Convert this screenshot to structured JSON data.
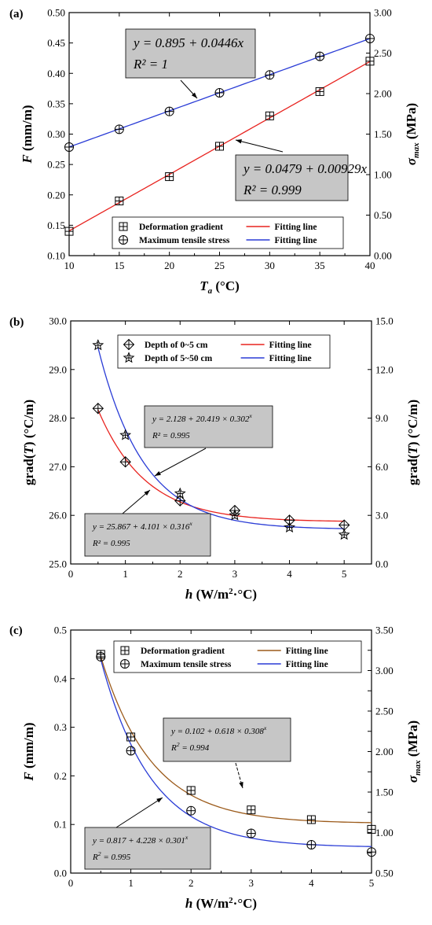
{
  "figure": {
    "panels": [
      "(a)",
      "(b)",
      "(c)"
    ]
  },
  "chart_data": [
    {
      "panel_label": "(a)",
      "type": "line",
      "xlabel": "T_a (°C)",
      "xlabel_main": "T",
      "xlabel_sub": "a",
      "xlabel_unit": " (°C)",
      "ylabel": "F (mm/m)",
      "ylabel_italic": "F",
      "ylabel_unit": " (mm/m)",
      "y2label": "σ_max (MPa)",
      "y2label_main": "σ",
      "y2label_sub": "max",
      "y2label_unit": " (MPa)",
      "xlim": [
        10,
        40
      ],
      "ylim": [
        0.1,
        0.5
      ],
      "y2lim": [
        0.0,
        3.0
      ],
      "xticks": [
        10,
        15,
        20,
        25,
        30,
        35,
        40
      ],
      "xtick_labels": [
        "10",
        "15",
        "20",
        "25",
        "30",
        "35",
        "40"
      ],
      "yticks": [
        0.1,
        0.15,
        0.2,
        0.25,
        0.3,
        0.35,
        0.4,
        0.45,
        0.5
      ],
      "ytick_labels": [
        "0.10",
        "0.15",
        "0.20",
        "0.25",
        "0.30",
        "0.35",
        "0.40",
        "0.45",
        "0.50"
      ],
      "y2ticks": [
        0.0,
        0.5,
        1.0,
        1.5,
        2.0,
        2.5,
        3.0
      ],
      "y2tick_labels": [
        "0.00",
        "0.50",
        "1.00",
        "1.50",
        "2.00",
        "2.50",
        "3.00"
      ],
      "grid": false,
      "series": [
        {
          "name": "Deformation gradient",
          "marker": "boxplus",
          "axis": "left",
          "x": [
            10,
            15,
            20,
            25,
            30,
            35,
            40
          ],
          "y": [
            0.14,
            0.19,
            0.23,
            0.28,
            0.33,
            0.37,
            0.42
          ]
        },
        {
          "name": "Maximum tensile stress",
          "marker": "oplus",
          "axis": "right",
          "x": [
            10,
            15,
            20,
            25,
            30,
            35,
            40
          ],
          "y": [
            1.34,
            1.56,
            1.78,
            2.01,
            2.23,
            2.46,
            2.68
          ]
        }
      ],
      "fits": [
        {
          "name": "Fitting line",
          "color": "#e8231f",
          "axis": "left",
          "model": "linear",
          "a": 0.0479,
          "b": 0.00929,
          "xrange": [
            10,
            40
          ]
        },
        {
          "name": "Fitting line",
          "color": "#2a3cd6",
          "axis": "right",
          "model": "linear",
          "a": 0.895,
          "b": 0.0446,
          "xrange": [
            10,
            40
          ]
        }
      ],
      "legend": [
        {
          "label": "Deformation gradient",
          "marker": "boxplus",
          "line_label": "Fitting line",
          "color": "#e8231f"
        },
        {
          "label": "Maximum tensile stress",
          "marker": "oplus",
          "line_label": "Fitting line",
          "color": "#2a3cd6"
        }
      ],
      "annotations": [
        {
          "line1": "y = 0.895 + 0.0446x",
          "line2": "R² = 1"
        },
        {
          "line1": "y = 0.0479 + 0.00929x",
          "line2": "R² = 0.999"
        }
      ]
    },
    {
      "panel_label": "(b)",
      "type": "line",
      "xlabel": "h (W/m²·°C)",
      "xlabel_main": "h",
      "xlabel_unit": " (W/m",
      "xlabel_sup": "2",
      "xlabel_unit2": "·°C)",
      "ylabel": "grad(T) (°C/m)",
      "y2label": "grad(T) (°C/m)",
      "grad_a": "grad(",
      "grad_t": "T",
      "grad_b": ") (°C/m)",
      "xlim": [
        0,
        5.5
      ],
      "ylim": [
        25.0,
        30.0
      ],
      "y2lim": [
        0.0,
        15.0
      ],
      "xticks": [
        0,
        1,
        2,
        3,
        4,
        5
      ],
      "xtick_labels": [
        "0",
        "1",
        "2",
        "3",
        "4",
        "5"
      ],
      "yticks": [
        25.0,
        26.0,
        27.0,
        28.0,
        29.0,
        30.0
      ],
      "ytick_labels": [
        "25.0",
        "26.0",
        "27.0",
        "28.0",
        "29.0",
        "30.0"
      ],
      "y2ticks": [
        0.0,
        3.0,
        6.0,
        9.0,
        12.0,
        15.0
      ],
      "y2tick_labels": [
        "0.0",
        "3.0",
        "6.0",
        "9.0",
        "12.0",
        "15.0"
      ],
      "grid": false,
      "series": [
        {
          "name": "Depth of 0~5 cm",
          "marker": "diamondplus",
          "axis": "left",
          "x": [
            0.5,
            1,
            2,
            3,
            4,
            5
          ],
          "y": [
            28.2,
            27.1,
            26.3,
            26.1,
            25.9,
            25.8
          ]
        },
        {
          "name": "Depth of 5~50 cm",
          "marker": "star",
          "axis": "left",
          "x": [
            0.5,
            1,
            2,
            3,
            4,
            5
          ],
          "y": [
            29.5,
            27.65,
            26.45,
            26.0,
            25.75,
            25.6
          ]
        }
      ],
      "fits": [
        {
          "name": "Fitting line",
          "color": "#e8231f",
          "axis": "left",
          "model": "exp",
          "a": 25.867,
          "b": 4.101,
          "c": 0.316,
          "xrange": [
            0.5,
            5
          ]
        },
        {
          "name": "Fitting line",
          "color": "#2a3cd6",
          "axis": "right",
          "model": "exp",
          "a": 2.128,
          "b": 20.419,
          "c": 0.302,
          "xrange": [
            0.5,
            5
          ]
        }
      ],
      "legend": [
        {
          "label": "Depth of 0~5 cm",
          "marker": "diamondplus",
          "line_label": "Fitting line",
          "color": "#e8231f"
        },
        {
          "label": "Depth of 5~50 cm",
          "marker": "star",
          "line_label": "Fitting line",
          "color": "#2a3cd6"
        }
      ],
      "annotations": [
        {
          "line1": "y = 2.128 + 20.419 × 0.302",
          "sup": "x",
          "line2": "R² = 0.995"
        },
        {
          "line1": "y = 25.867 + 4.101 × 0.316",
          "sup": "x",
          "line2": "R² = 0.995"
        }
      ]
    },
    {
      "panel_label": "(c)",
      "type": "line",
      "xlabel": "h (W/m²·°C)",
      "xlabel_main": "h",
      "xlabel_unit": " (W/m",
      "xlabel_sup": "2",
      "xlabel_unit2": "·°C)",
      "ylabel": "F (mm/m)",
      "ylabel_italic": "F",
      "ylabel_unit": " (mm/m)",
      "y2label": "σ_max (MPa)",
      "y2label_main": "σ",
      "y2label_sub": "max",
      "y2label_unit": " (MPa)",
      "xlim": [
        0,
        5
      ],
      "ylim": [
        0.0,
        0.5
      ],
      "y2lim": [
        0.5,
        3.5
      ],
      "xticks": [
        0,
        1,
        2,
        3,
        4,
        5
      ],
      "xtick_labels": [
        "0",
        "1",
        "2",
        "3",
        "4",
        "5"
      ],
      "yticks": [
        0.0,
        0.1,
        0.2,
        0.3,
        0.4,
        0.5
      ],
      "ytick_labels": [
        "0.0",
        "0.1",
        "0.2",
        "0.3",
        "0.4",
        "0.5"
      ],
      "y2ticks": [
        0.5,
        0.75,
        1.0,
        1.25,
        1.5,
        1.75,
        2.0,
        2.25,
        2.5,
        2.75,
        3.0,
        3.25,
        3.5
      ],
      "y2tick_labels": [
        "0.50",
        "0.75",
        "1.00",
        "1.25",
        "1.50",
        "1.75",
        "2.00",
        "2.25",
        "2.50",
        "2.75",
        "3.00",
        "3.25",
        "3.50"
      ],
      "grid": false,
      "series": [
        {
          "name": "Deformation gradient",
          "marker": "boxplus",
          "axis": "left",
          "x": [
            0.5,
            1,
            2,
            3,
            4,
            5
          ],
          "y": [
            0.45,
            0.28,
            0.17,
            0.13,
            0.11,
            0.09
          ]
        },
        {
          "name": "Maximum tensile stress",
          "marker": "oplus",
          "axis": "right",
          "x": [
            0.5,
            1,
            2,
            3,
            4,
            5
          ],
          "y": [
            3.17,
            2.01,
            1.27,
            0.99,
            0.85,
            0.76
          ]
        }
      ],
      "fits": [
        {
          "name": "Fitting line",
          "color": "#9b5a1a",
          "axis": "left",
          "model": "exp",
          "a": 0.102,
          "b": 0.618,
          "c": 0.308,
          "xrange": [
            0.5,
            5
          ]
        },
        {
          "name": "Fitting line",
          "color": "#2a3cd6",
          "axis": "right",
          "model": "exp",
          "a": 0.817,
          "b": 4.228,
          "c": 0.301,
          "xrange": [
            0.5,
            5
          ]
        }
      ],
      "legend": [
        {
          "label": "Deformation gradient",
          "marker": "boxplus",
          "line_label": "Fitting line",
          "color": "#9b5a1a"
        },
        {
          "label": "Maximum tensile stress",
          "marker": "oplus",
          "line_label": "Fitting line",
          "color": "#2a3cd6"
        }
      ],
      "annotations": [
        {
          "line1": "y = 0.102 + 0.618 × 0.308",
          "sup": "x",
          "line2": "R  = 0.994",
          "r_sup": "2"
        },
        {
          "line1": "y = 0.817 + 4.228 × 0.301",
          "sup": "x",
          "line2": "R  = 0.995",
          "r_sup": "2"
        }
      ]
    }
  ]
}
